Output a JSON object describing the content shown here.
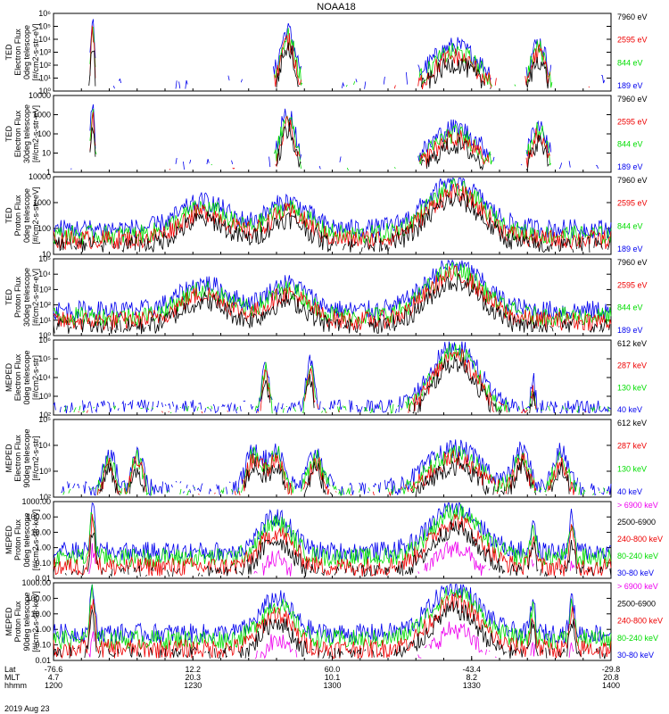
{
  "title": "NOAA18",
  "colors": {
    "black": "#000000",
    "red": "#ee0000",
    "green": "#00dd00",
    "blue": "#0000ee",
    "magenta": "#ee00ee"
  },
  "chart_data": [
    {
      "type": "line",
      "scale": "log",
      "ylabel": [
        "TED",
        "Electron Flux",
        "0deg telescope",
        "[#/cm2-s-str-eV]"
      ],
      "yticks": [
        "10⁰",
        "10¹",
        "10²",
        "10³",
        "10⁴",
        "10⁵",
        "10⁶"
      ],
      "ylim": [
        1,
        1000000
      ],
      "series": [
        {
          "name": "7960 eV",
          "color": "#000000"
        },
        {
          "name": "2595 eV",
          "color": "#ee0000"
        },
        {
          "name": "844 eV",
          "color": "#00dd00"
        },
        {
          "name": "189 eV",
          "color": "#0000ee"
        }
      ]
    },
    {
      "type": "line",
      "scale": "log",
      "ylabel": [
        "TED",
        "Electron Flux",
        "30deg telescope",
        "[#/cm2-s-str-eV]"
      ],
      "yticks": [
        "1",
        "10",
        "100",
        "1000",
        "10000"
      ],
      "ylim": [
        1,
        10000
      ],
      "series": [
        {
          "name": "7960 eV",
          "color": "#000000"
        },
        {
          "name": "2595 eV",
          "color": "#ee0000"
        },
        {
          "name": "844 eV",
          "color": "#00dd00"
        },
        {
          "name": "189 eV",
          "color": "#0000ee"
        }
      ]
    },
    {
      "type": "line",
      "scale": "log",
      "ylabel": [
        "TED",
        "Proton Flux",
        "0deg telescope",
        "[#/cm2-s-str-eV]"
      ],
      "yticks": [
        "10",
        "100",
        "1000",
        "10000"
      ],
      "ylim": [
        3,
        10000
      ],
      "series": [
        {
          "name": "7960 eV",
          "color": "#000000"
        },
        {
          "name": "2595 eV",
          "color": "#ee0000"
        },
        {
          "name": "844 eV",
          "color": "#00dd00"
        },
        {
          "name": "189 eV",
          "color": "#0000ee"
        }
      ]
    },
    {
      "type": "line",
      "scale": "log",
      "ylabel": [
        "TED",
        "Proton Flux",
        "30deg telescope",
        "[#/cm2-s-str-eV]"
      ],
      "yticks": [
        "10⁰",
        "10¹",
        "10²",
        "10³",
        "10⁴",
        "10⁵"
      ],
      "ylim": [
        1,
        100000
      ],
      "series": [
        {
          "name": "7960 eV",
          "color": "#000000"
        },
        {
          "name": "2595 eV",
          "color": "#ee0000"
        },
        {
          "name": "844 eV",
          "color": "#00dd00"
        },
        {
          "name": "189 eV",
          "color": "#0000ee"
        }
      ]
    },
    {
      "type": "line",
      "scale": "log",
      "ylabel": [
        "MEPED",
        "Electron Flux",
        "0deg telescope",
        "[#/cm2-s-str]"
      ],
      "yticks": [
        "10²",
        "10³",
        "10⁴",
        "10⁵",
        "10⁶"
      ],
      "ylim": [
        100,
        1000000
      ],
      "series": [
        {
          "name": "612 keV",
          "color": "#000000"
        },
        {
          "name": "287 keV",
          "color": "#ee0000"
        },
        {
          "name": "130 keV",
          "color": "#00dd00"
        },
        {
          "name": "40 keV",
          "color": "#0000ee"
        }
      ]
    },
    {
      "type": "line",
      "scale": "log",
      "ylabel": [
        "MEPED",
        "Electron Flux",
        "90deg telescope",
        "[#/cm2-s-str]"
      ],
      "yticks": [
        "10²",
        "10³",
        "10⁴",
        "10⁵"
      ],
      "ylim": [
        100,
        100000
      ],
      "series": [
        {
          "name": "612 keV",
          "color": "#000000"
        },
        {
          "name": "287 keV",
          "color": "#ee0000"
        },
        {
          "name": "130 keV",
          "color": "#00dd00"
        },
        {
          "name": "40 keV",
          "color": "#0000ee"
        }
      ]
    },
    {
      "type": "line",
      "scale": "log",
      "ylabel": [
        "MEPED",
        "Proton Flux",
        "0deg telescope",
        "[#/cm2-s-str-keV]"
      ],
      "yticks": [
        "0.01",
        "0.10",
        "1.00",
        "10.00",
        "100.00",
        "1000.00"
      ],
      "ylim": [
        0.01,
        1000
      ],
      "series": [
        {
          "name": "> 6900 keV",
          "color": "#ee00ee"
        },
        {
          "name": "2500-6900",
          "color": "#000000"
        },
        {
          "name": "240-800 keV",
          "color": "#ee0000"
        },
        {
          "name": "80-240 keV",
          "color": "#00dd00"
        },
        {
          "name": "30-80 keV",
          "color": "#0000ee"
        }
      ]
    },
    {
      "type": "line",
      "scale": "log",
      "ylabel": [
        "MEPED",
        "Proton Flux",
        "90deg telescope",
        "[#/cm2-s-str-keV]"
      ],
      "yticks": [
        "0.01",
        "0.10",
        "1.00",
        "10.00",
        "100.00",
        "1000.00"
      ],
      "ylim": [
        0.01,
        1000
      ],
      "series": [
        {
          "name": "> 6900 keV",
          "color": "#ee00ee"
        },
        {
          "name": "2500-6900",
          "color": "#000000"
        },
        {
          "name": "240-800 keV",
          "color": "#ee0000"
        },
        {
          "name": "80-240 keV",
          "color": "#00dd00"
        },
        {
          "name": "30-80 keV",
          "color": "#0000ee"
        }
      ]
    }
  ],
  "xaxis": {
    "row_labels": [
      "Lat",
      "MLT",
      "hhmm"
    ],
    "date": "2019 Aug 23",
    "ticks": [
      {
        "lat": "-76.6",
        "mlt": "4.7",
        "hhmm": "1200"
      },
      {
        "lat": "12.2",
        "mlt": "20.3",
        "hhmm": "1230"
      },
      {
        "lat": "60.0",
        "mlt": "10.1",
        "hhmm": "1300"
      },
      {
        "lat": "-43.4",
        "mlt": "8.2",
        "hhmm": "1330"
      },
      {
        "lat": "-29.8",
        "mlt": "20.8",
        "hhmm": "1400"
      }
    ]
  }
}
